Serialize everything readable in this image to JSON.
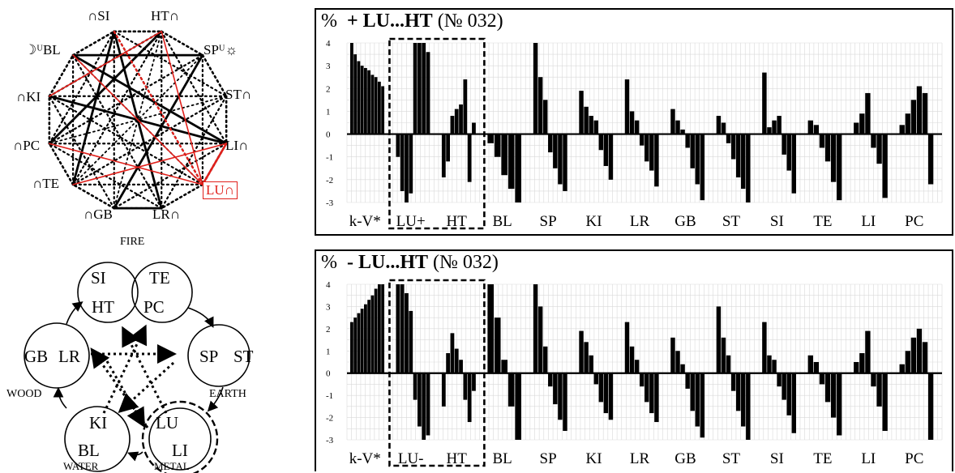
{
  "polygon": {
    "labels": [
      "∩SI",
      "HT∩",
      "SPᵁ☼",
      "ST∩",
      "LI∩",
      "LU∩",
      "LR∩",
      "∩GB",
      "∩TE",
      "∩PC",
      "∩KI",
      "☽ᵁBL"
    ],
    "highlight_color": "#e0201b"
  },
  "elements": {
    "top_label": "FIRE",
    "left_label": "WOOD",
    "right_label": "EARTH",
    "bottom_left_label": "WATER",
    "bottom_right_label": "METAL",
    "circles": [
      {
        "id": "fire",
        "labels": [
          "SI",
          "TE",
          "HT",
          "PC"
        ]
      },
      {
        "id": "earth",
        "labels": [
          "SP",
          "ST"
        ]
      },
      {
        "id": "metal",
        "labels": [
          "LU",
          "LI"
        ]
      },
      {
        "id": "water",
        "labels": [
          "KI",
          "BL"
        ]
      },
      {
        "id": "wood",
        "labels": [
          "GB",
          "LR"
        ]
      }
    ]
  },
  "chart_data": [
    {
      "type": "bar",
      "title": "%  + LU...HT (№ 032)",
      "title_prefix": "%",
      "title_main": "+ LU...HT",
      "title_suffix": "(№ 032)",
      "ylim": [
        -3,
        4
      ],
      "yticks": [
        "4",
        "3",
        "2",
        "1",
        "0",
        "-1",
        "-2",
        "-3"
      ],
      "categories": [
        "k-V*",
        "LU+",
        "HT",
        "BL",
        "SP",
        "KI",
        "LR",
        "GB",
        "ST",
        "SI",
        "TE",
        "LI",
        "PC"
      ],
      "highlight": [
        "LU+",
        "HT"
      ],
      "grid": true,
      "series_values": [
        [
          4.0,
          3.5,
          3.2,
          3.0,
          2.9,
          2.8,
          2.6,
          2.5,
          2.3,
          2.1
        ],
        [
          -1.0,
          -2.5,
          -3.0,
          -2.6,
          4.0,
          4.0,
          4.0,
          3.6
        ],
        [
          -1.9,
          -1.2,
          0.8,
          1.1,
          1.3,
          2.4,
          -2.1,
          0.5
        ],
        [
          -0.4,
          -1.0,
          -1.8,
          -2.4,
          -3.0
        ],
        [
          4.0,
          2.5,
          1.5,
          -0.8,
          -1.5,
          -2.2,
          -2.5
        ],
        [
          1.9,
          1.2,
          0.8,
          0.6,
          -0.7,
          -1.4,
          -2.0
        ],
        [
          2.4,
          1.0,
          0.6,
          -0.5,
          -1.2,
          -1.6,
          -2.3
        ],
        [
          1.1,
          0.6,
          0.2,
          -0.6,
          -1.5,
          -2.2,
          -2.9
        ],
        [
          0.8,
          0.5,
          -0.4,
          -1.1,
          -1.9,
          -2.4,
          -3.0
        ],
        [
          2.7,
          0.3,
          0.6,
          0.8,
          -0.9,
          -1.6,
          -2.6
        ],
        [
          0.6,
          0.4,
          -0.6,
          -1.2,
          -2.1,
          -2.9
        ],
        [
          0.5,
          0.9,
          1.8,
          -0.6,
          -1.3,
          -2.8
        ],
        [
          0.4,
          0.9,
          1.5,
          2.1,
          1.8,
          -2.2
        ]
      ]
    },
    {
      "type": "bar",
      "title": "%  - LU...HT (№ 032)",
      "title_prefix": "%",
      "title_main": "- LU...HT",
      "title_suffix": "(№ 032)",
      "ylim": [
        -3,
        4
      ],
      "yticks": [
        "4",
        "3",
        "2",
        "1",
        "0",
        "-1",
        "-2",
        "-3"
      ],
      "categories": [
        "k-V*",
        "LU-",
        "HT",
        "BL",
        "SP",
        "KI",
        "LR",
        "GB",
        "ST",
        "SI",
        "TE",
        "LI",
        "PC"
      ],
      "highlight": [
        "LU-",
        "HT"
      ],
      "grid": true,
      "series_values": [
        [
          2.3,
          2.5,
          2.7,
          2.9,
          3.1,
          3.3,
          3.5,
          3.8,
          4.0,
          4.0
        ],
        [
          4.0,
          4.0,
          3.6,
          2.8,
          -1.2,
          -2.4,
          -3.0,
          -2.8
        ],
        [
          -1.5,
          0.9,
          1.8,
          1.1,
          0.6,
          -1.2,
          -2.2,
          -0.8
        ],
        [
          4.0,
          2.5,
          0.6,
          -1.5,
          -3.0
        ],
        [
          4.0,
          3.0,
          1.2,
          -0.6,
          -1.4,
          -2.1,
          -2.6
        ],
        [
          1.9,
          1.4,
          0.8,
          -0.5,
          -1.3,
          -1.8,
          -2.1
        ],
        [
          2.3,
          1.2,
          0.6,
          -0.6,
          -1.3,
          -1.8,
          -2.2
        ],
        [
          1.6,
          1.0,
          0.4,
          -0.7,
          -1.7,
          -2.4,
          -2.9
        ],
        [
          3.0,
          1.6,
          0.8,
          -0.8,
          -1.7,
          -2.4,
          -3.0
        ],
        [
          2.3,
          0.8,
          0.6,
          -0.6,
          -1.2,
          -1.9,
          -2.7
        ],
        [
          0.8,
          0.5,
          -0.5,
          -1.3,
          -2.0,
          -2.8
        ],
        [
          0.5,
          0.9,
          1.9,
          -0.6,
          -1.5,
          -2.6
        ],
        [
          0.4,
          1.0,
          1.6,
          2.0,
          1.4,
          -3.0
        ]
      ]
    }
  ]
}
